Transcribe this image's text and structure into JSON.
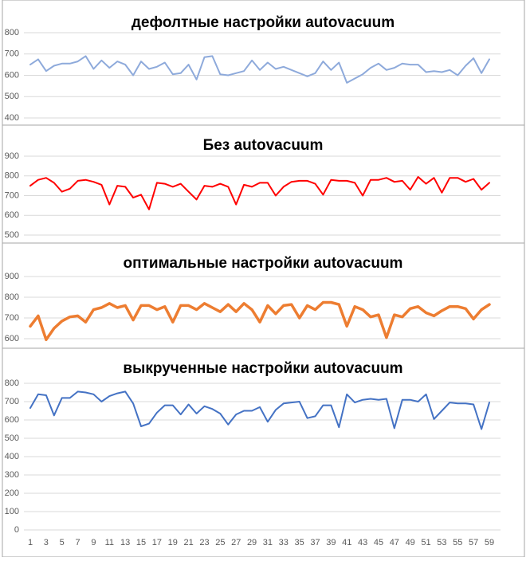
{
  "chart_data": [
    {
      "type": "line",
      "title": "дефолтные настройки autovacuum",
      "color": "#8eaadb",
      "ylim": [
        400,
        800
      ],
      "yticks": [
        400,
        500,
        600,
        700,
        800
      ],
      "grid": true,
      "values": [
        650,
        675,
        620,
        645,
        655,
        655,
        665,
        690,
        630,
        670,
        635,
        665,
        650,
        600,
        665,
        630,
        640,
        660,
        605,
        610,
        650,
        580,
        685,
        690,
        605,
        600,
        610,
        620,
        670,
        625,
        660,
        630,
        640,
        625,
        610,
        595,
        610,
        665,
        625,
        660,
        565,
        585,
        605,
        635,
        655,
        625,
        635,
        655,
        650,
        650,
        615,
        620,
        615,
        625,
        600,
        645,
        680,
        610,
        675
      ]
    },
    {
      "type": "line",
      "title": "Без autovacuum",
      "color": "#ff0000",
      "ylim": [
        500,
        900
      ],
      "yticks": [
        500,
        600,
        700,
        800,
        900
      ],
      "grid": true,
      "values": [
        750,
        780,
        790,
        765,
        720,
        735,
        775,
        780,
        770,
        755,
        655,
        750,
        745,
        690,
        705,
        630,
        765,
        760,
        745,
        760,
        720,
        680,
        750,
        745,
        760,
        745,
        655,
        755,
        745,
        765,
        765,
        700,
        745,
        770,
        775,
        775,
        760,
        705,
        780,
        775,
        775,
        765,
        700,
        780,
        780,
        790,
        770,
        775,
        730,
        795,
        760,
        790,
        715,
        790,
        790,
        770,
        785,
        730,
        765
      ]
    },
    {
      "type": "line",
      "title": "оптимальные настройки autovacuum",
      "color": "#ed7d31",
      "ylim": [
        600,
        900
      ],
      "yticks": [
        600,
        700,
        800,
        900
      ],
      "grid": true,
      "values": [
        660,
        710,
        595,
        650,
        685,
        705,
        710,
        680,
        740,
        750,
        770,
        750,
        760,
        690,
        760,
        760,
        740,
        755,
        680,
        760,
        760,
        740,
        770,
        750,
        730,
        765,
        730,
        770,
        740,
        680,
        760,
        720,
        760,
        765,
        700,
        760,
        740,
        775,
        775,
        765,
        660,
        755,
        740,
        705,
        715,
        605,
        715,
        705,
        745,
        755,
        725,
        710,
        735,
        755,
        755,
        745,
        695,
        740,
        765
      ]
    },
    {
      "type": "line",
      "title": "выкрученные настройки autovacuum",
      "color": "#4472c4",
      "ylim": [
        0,
        800
      ],
      "yticks": [
        0,
        100,
        200,
        300,
        400,
        500,
        600,
        700,
        800
      ],
      "grid": true,
      "categories": [
        "1",
        null,
        "3",
        null,
        "5",
        null,
        "7",
        null,
        "9",
        null,
        "11",
        null,
        "13",
        null,
        "15",
        null,
        "17",
        null,
        "19",
        null,
        "21",
        null,
        "23",
        null,
        "25",
        null,
        "27",
        null,
        "29",
        null,
        "31",
        null,
        "33",
        null,
        "35",
        null,
        "37",
        null,
        "39",
        null,
        "41",
        null,
        "43",
        null,
        "45",
        null,
        "47",
        null,
        "49",
        null,
        "51",
        null,
        "53",
        null,
        "55",
        null,
        "57",
        null,
        "59"
      ],
      "values": [
        665,
        740,
        735,
        625,
        720,
        720,
        755,
        750,
        740,
        700,
        730,
        745,
        755,
        690,
        565,
        580,
        640,
        680,
        680,
        630,
        685,
        635,
        675,
        660,
        635,
        575,
        630,
        650,
        650,
        670,
        590,
        655,
        690,
        695,
        700,
        610,
        620,
        680,
        680,
        560,
        740,
        695,
        710,
        715,
        710,
        715,
        555,
        710,
        710,
        700,
        740,
        605,
        650,
        695,
        690,
        690,
        685,
        550,
        695
      ]
    }
  ]
}
